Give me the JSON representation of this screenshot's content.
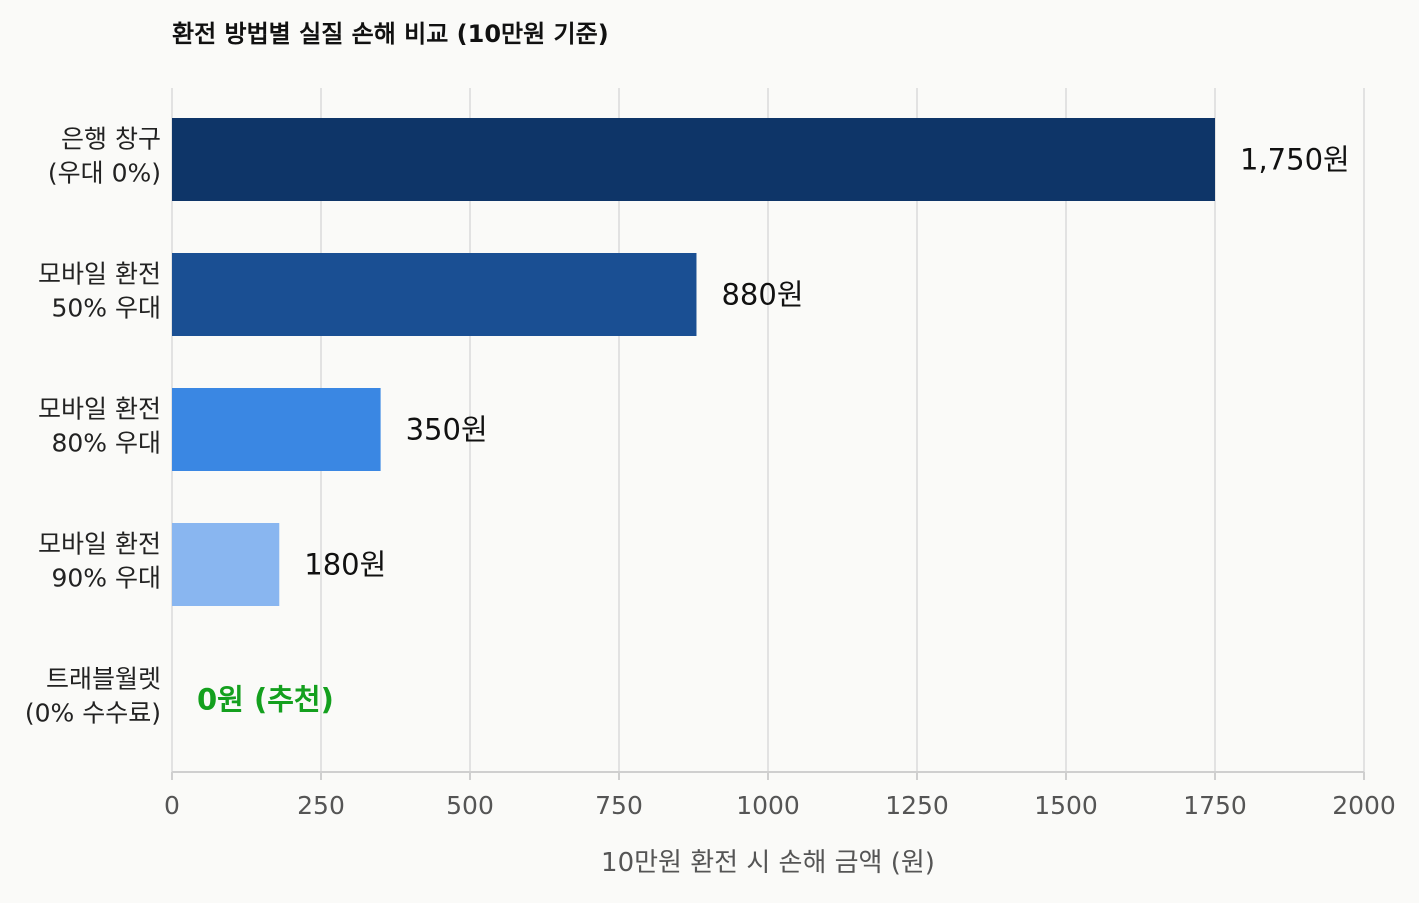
{
  "chart_data": {
    "type": "bar",
    "orientation": "horizontal",
    "title": "환전 방법별 실질 손해 비교 (10만원 기준)",
    "xlabel": "10만원 환전 시 손해 금액 (원)",
    "ylabel": "",
    "xlim": [
      0,
      2000
    ],
    "x_ticks": [
      0,
      250,
      500,
      750,
      1000,
      1250,
      1500,
      1750,
      2000
    ],
    "grid": "vertical",
    "categories": [
      [
        "은행 창구",
        "(우대 0%)"
      ],
      [
        "모바일 환전",
        "50% 우대"
      ],
      [
        "모바일 환전",
        "80% 우대"
      ],
      [
        "모바일 환전",
        "90% 우대"
      ],
      [
        "트래블월렛",
        "(0% 수수료)"
      ]
    ],
    "values": [
      1750,
      880,
      350,
      180,
      0
    ],
    "value_labels": [
      "1,750원",
      "880원",
      "350원",
      "180원",
      "0원 (추천)"
    ],
    "colors": [
      "#0e3568",
      "#1a4f93",
      "#3a87e3",
      "#89b6f0",
      "#89b6f0"
    ],
    "highlight_color": "#14a01e",
    "highlight_index": 4
  }
}
